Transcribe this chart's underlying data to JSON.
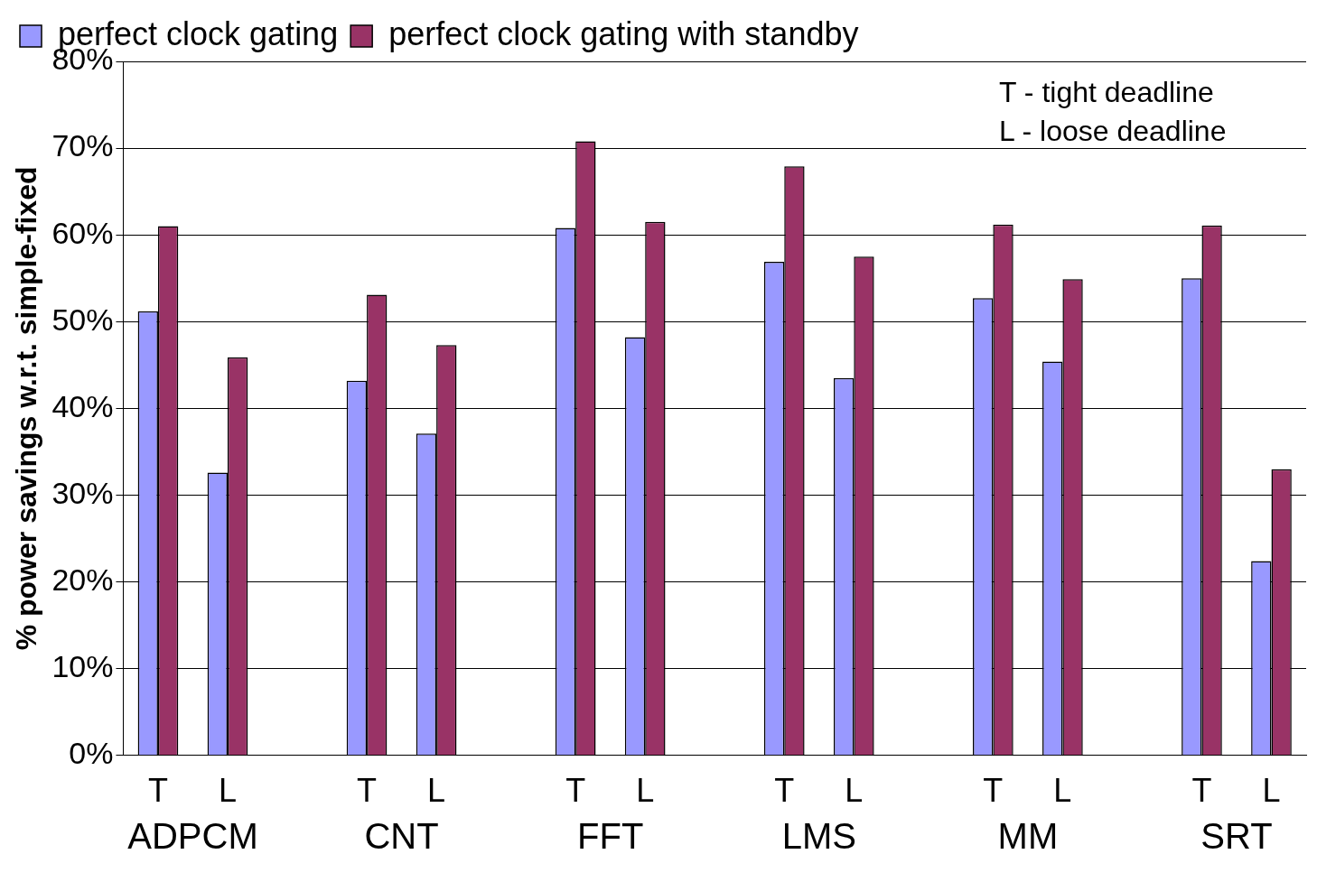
{
  "chart_data": {
    "type": "bar",
    "ylabel": "% power savings w.r.t. simple-fixed",
    "categories": [
      "T",
      "L",
      null,
      "T",
      "L",
      null,
      "T",
      "L",
      null,
      "T",
      "L",
      null,
      "T",
      "L",
      null,
      "T",
      "L"
    ],
    "series": [
      {
        "name": "perfect clock gating",
        "color": "#9999ff",
        "values": [
          51.2,
          32.6,
          null,
          43.2,
          37.1,
          null,
          60.8,
          48.2,
          null,
          56.9,
          43.5,
          null,
          52.7,
          45.4,
          null,
          55.0,
          22.4
        ]
      },
      {
        "name": "perfect clock gating with standby",
        "color": "#993366",
        "values": [
          61.0,
          45.9,
          null,
          53.1,
          47.3,
          null,
          70.8,
          61.5,
          null,
          67.9,
          57.5,
          null,
          61.2,
          54.9,
          null,
          61.1,
          33.0
        ]
      }
    ],
    "ylim": [
      0,
      80
    ],
    "yticks": [
      {
        "value": 0,
        "label": "0%"
      },
      {
        "value": 10,
        "label": "10%"
      },
      {
        "value": 20,
        "label": "20%"
      },
      {
        "value": 30,
        "label": "30%"
      },
      {
        "value": 40,
        "label": "40%"
      },
      {
        "value": 50,
        "label": "50%"
      },
      {
        "value": 60,
        "label": "60%"
      },
      {
        "value": 70,
        "label": "70%"
      },
      {
        "value": 80,
        "label": "80%"
      }
    ],
    "grid": "y",
    "legend": "top left",
    "annotations": [
      "T - tight deadline",
      "L - loose deadline",
      "ADPCM",
      "CNT",
      "FFT",
      "LMS",
      "MM",
      "SRT"
    ]
  }
}
